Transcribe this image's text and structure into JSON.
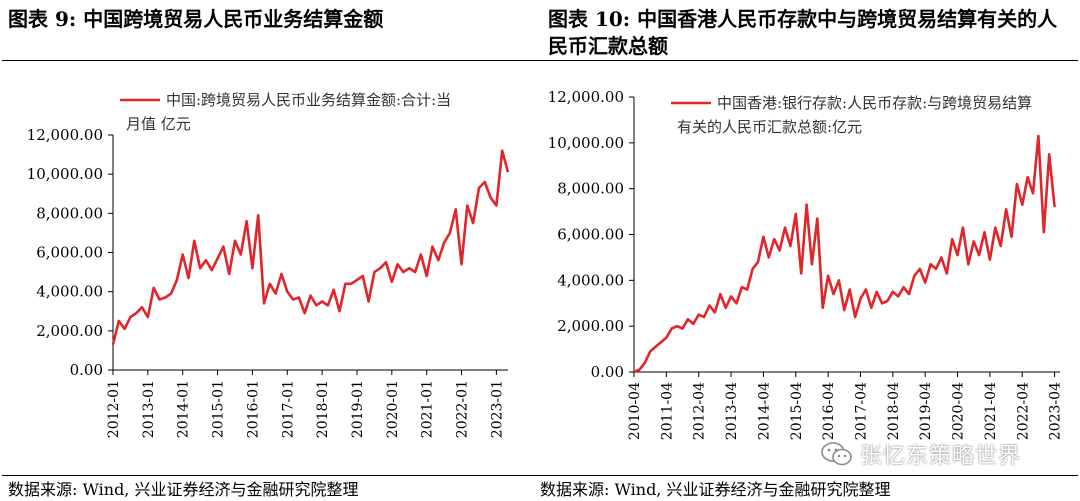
{
  "left": {
    "title": "图表 9:  中国跨境贸易人民币业务结算金额",
    "source": "数据来源:  Wind,  兴业证券经济与金融研究院整理"
  },
  "right": {
    "title": "图表 10:  中国香港人民币存款中与跨境贸易结算有关的人民币汇款总额",
    "source": "数据来源:  Wind,  兴业证券经济与金融研究院整理"
  },
  "watermark": {
    "text": "张忆东策略世界",
    "icon": "wechat-icon"
  },
  "colors": {
    "line": "#e0262a",
    "axis": "#000000"
  },
  "chart_data": [
    {
      "type": "line",
      "legend_placement": "top-left",
      "grid": false,
      "ylim": [
        0,
        12000
      ],
      "yticks": [
        "0.00",
        "2,000.00",
        "4,000.00",
        "6,000.00",
        "8,000.00",
        "10,000.00",
        "12,000.00"
      ],
      "xticks": [
        "2012-01",
        "2013-01",
        "2014-01",
        "2015-01",
        "2016-01",
        "2017-01",
        "2018-01",
        "2019-01",
        "2020-01",
        "2021-01",
        "2022-01",
        "2023-01"
      ],
      "series": [
        {
          "name": "中国:跨境贸易人民币业务结算金额:合计:当月值 亿元",
          "x": [
            "2012-01",
            "2012-03",
            "2012-05",
            "2012-07",
            "2012-09",
            "2012-11",
            "2013-01",
            "2013-03",
            "2013-05",
            "2013-07",
            "2013-09",
            "2013-11",
            "2014-01",
            "2014-03",
            "2014-05",
            "2014-07",
            "2014-09",
            "2014-11",
            "2015-01",
            "2015-03",
            "2015-05",
            "2015-07",
            "2015-09",
            "2015-11",
            "2016-01",
            "2016-03",
            "2016-05",
            "2016-07",
            "2016-09",
            "2016-11",
            "2017-01",
            "2017-03",
            "2017-05",
            "2017-07",
            "2017-09",
            "2017-11",
            "2018-01",
            "2018-03",
            "2018-05",
            "2018-07",
            "2018-09",
            "2018-11",
            "2019-01",
            "2019-03",
            "2019-05",
            "2019-07",
            "2019-09",
            "2019-11",
            "2020-01",
            "2020-03",
            "2020-05",
            "2020-07",
            "2020-09",
            "2020-11",
            "2021-01",
            "2021-03",
            "2021-05",
            "2021-07",
            "2021-09",
            "2021-11",
            "2022-01",
            "2022-03",
            "2022-05",
            "2022-07",
            "2022-09",
            "2022-11",
            "2023-01",
            "2023-03",
            "2023-05"
          ],
          "y": [
            1300,
            2500,
            2100,
            2700,
            2900,
            3200,
            2700,
            4200,
            3600,
            3700,
            3900,
            4600,
            5900,
            4700,
            6600,
            5200,
            5600,
            5100,
            5700,
            6300,
            4900,
            6600,
            5900,
            7600,
            5200,
            7900,
            3400,
            4400,
            3900,
            4900,
            4000,
            3600,
            3700,
            2900,
            3800,
            3300,
            3500,
            3300,
            4100,
            3000,
            4400,
            4400,
            4600,
            4800,
            3500,
            5000,
            5200,
            5500,
            4500,
            5400,
            5000,
            5200,
            5000,
            5900,
            4800,
            6300,
            5600,
            6500,
            7000,
            8200,
            5400,
            8400,
            7500,
            9300,
            9600,
            8800,
            8400,
            11200,
            10100
          ]
        }
      ]
    },
    {
      "type": "line",
      "legend_placement": "top-right",
      "grid": false,
      "ylim": [
        0,
        12000
      ],
      "yticks": [
        "0.00",
        "2,000.00",
        "4,000.00",
        "6,000.00",
        "8,000.00",
        "10,000.00",
        "12,000.00"
      ],
      "xticks": [
        "2010-04",
        "2011-04",
        "2012-04",
        "2013-04",
        "2014-04",
        "2015-04",
        "2016-04",
        "2017-04",
        "2018-04",
        "2019-04",
        "2020-04",
        "2021-04",
        "2022-04",
        "2023-04"
      ],
      "series": [
        {
          "name": "中国香港:银行存款:人民币存款:与跨境贸易结算有关的人民币汇款总额:亿元",
          "x": [
            "2010-04",
            "2010-06",
            "2010-08",
            "2010-10",
            "2010-12",
            "2011-02",
            "2011-04",
            "2011-06",
            "2011-08",
            "2011-10",
            "2011-12",
            "2012-02",
            "2012-04",
            "2012-06",
            "2012-08",
            "2012-10",
            "2012-12",
            "2013-02",
            "2013-04",
            "2013-06",
            "2013-08",
            "2013-10",
            "2013-12",
            "2014-02",
            "2014-04",
            "2014-06",
            "2014-08",
            "2014-10",
            "2014-12",
            "2015-02",
            "2015-04",
            "2015-06",
            "2015-08",
            "2015-10",
            "2015-12",
            "2016-02",
            "2016-04",
            "2016-06",
            "2016-08",
            "2016-10",
            "2016-12",
            "2017-02",
            "2017-04",
            "2017-06",
            "2017-08",
            "2017-10",
            "2017-12",
            "2018-02",
            "2018-04",
            "2018-06",
            "2018-08",
            "2018-10",
            "2018-12",
            "2019-02",
            "2019-04",
            "2019-06",
            "2019-08",
            "2019-10",
            "2019-12",
            "2020-02",
            "2020-04",
            "2020-06",
            "2020-08",
            "2020-10",
            "2020-12",
            "2021-02",
            "2021-04",
            "2021-06",
            "2021-08",
            "2021-10",
            "2021-12",
            "2022-02",
            "2022-04",
            "2022-06",
            "2022-08",
            "2022-10",
            "2022-12",
            "2023-02",
            "2023-04"
          ],
          "y": [
            0,
            100,
            400,
            900,
            1100,
            1300,
            1500,
            1900,
            2000,
            1900,
            2300,
            2100,
            2500,
            2400,
            2900,
            2600,
            3400,
            2800,
            3300,
            3000,
            3700,
            3600,
            4500,
            4800,
            5900,
            5000,
            5800,
            5300,
            6300,
            5500,
            6900,
            4300,
            7300,
            4700,
            6700,
            2800,
            4200,
            3400,
            4000,
            2700,
            3600,
            2400,
            3200,
            3600,
            2800,
            3500,
            3000,
            3100,
            3500,
            3300,
            3700,
            3400,
            4200,
            4500,
            3900,
            4700,
            4500,
            5000,
            4300,
            5800,
            5100,
            6300,
            4700,
            5700,
            5100,
            6100,
            4900,
            6300,
            5500,
            7100,
            5900,
            8200,
            7300,
            8500,
            7800,
            10300,
            6100,
            9500,
            7200
          ]
        }
      ]
    }
  ]
}
